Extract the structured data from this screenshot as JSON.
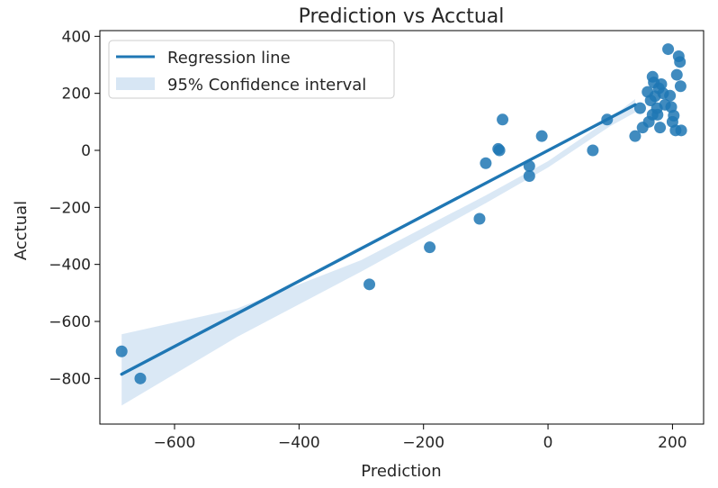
{
  "chart_data": {
    "type": "scatter",
    "title": "Prediction vs Acctual",
    "xlabel": "Prediction",
    "ylabel": "Acctual",
    "xlim": [
      -720,
      250
    ],
    "ylim": [
      -960,
      420
    ],
    "xticks": [
      -600,
      -400,
      -200,
      0,
      200
    ],
    "yticks": [
      400,
      200,
      0,
      -200,
      -400,
      -600,
      -800
    ],
    "xtick_labels": [
      "−600",
      "−400",
      "−200",
      "0",
      "200"
    ],
    "ytick_labels": [
      "400",
      "200",
      "0",
      "−200",
      "−400",
      "−600",
      "−800"
    ],
    "grid": false,
    "legend_position": "top-left",
    "colors": {
      "points": "#1f77b4",
      "line": "#1f77b4",
      "band": "#c6dbef"
    },
    "series": [
      {
        "type": "scatter",
        "points": [
          {
            "x": -685,
            "y": -705
          },
          {
            "x": -655,
            "y": -800
          },
          {
            "x": -287,
            "y": -470
          },
          {
            "x": -190,
            "y": -340
          },
          {
            "x": -110,
            "y": -240
          },
          {
            "x": -100,
            "y": -45
          },
          {
            "x": -80,
            "y": 5
          },
          {
            "x": -78,
            "y": 0
          },
          {
            "x": -73,
            "y": 108
          },
          {
            "x": -30,
            "y": -90
          },
          {
            "x": -30,
            "y": -55
          },
          {
            "x": -10,
            "y": 50
          },
          {
            "x": 72,
            "y": 0
          },
          {
            "x": 95,
            "y": 108
          },
          {
            "x": 140,
            "y": 50
          },
          {
            "x": 148,
            "y": 148
          },
          {
            "x": 152,
            "y": 80
          },
          {
            "x": 160,
            "y": 205
          },
          {
            "x": 162,
            "y": 100
          },
          {
            "x": 165,
            "y": 175
          },
          {
            "x": 168,
            "y": 258
          },
          {
            "x": 168,
            "y": 125
          },
          {
            "x": 170,
            "y": 238
          },
          {
            "x": 172,
            "y": 190
          },
          {
            "x": 175,
            "y": 148
          },
          {
            "x": 176,
            "y": 125
          },
          {
            "x": 178,
            "y": 218
          },
          {
            "x": 180,
            "y": 80
          },
          {
            "x": 182,
            "y": 232
          },
          {
            "x": 185,
            "y": 200
          },
          {
            "x": 188,
            "y": 160
          },
          {
            "x": 193,
            "y": 355
          },
          {
            "x": 196,
            "y": 192
          },
          {
            "x": 198,
            "y": 152
          },
          {
            "x": 200,
            "y": 100
          },
          {
            "x": 202,
            "y": 122
          },
          {
            "x": 205,
            "y": 70
          },
          {
            "x": 207,
            "y": 265
          },
          {
            "x": 210,
            "y": 330
          },
          {
            "x": 212,
            "y": 310
          },
          {
            "x": 213,
            "y": 225
          },
          {
            "x": 214,
            "y": 70
          }
        ]
      },
      {
        "name": "Regression line",
        "type": "line",
        "x": [
          -685,
          140
        ],
        "y": [
          -785,
          160
        ]
      },
      {
        "name": "95% Confidence interval",
        "type": "area",
        "x": [
          -685,
          -500,
          -300,
          -100,
          0,
          100,
          140
        ],
        "lower": [
          -895,
          -655,
          -425,
          -185,
          -60,
          85,
          133
        ],
        "upper": [
          -645,
          -555,
          -385,
          -158,
          -38,
          112,
          180
        ]
      }
    ]
  }
}
